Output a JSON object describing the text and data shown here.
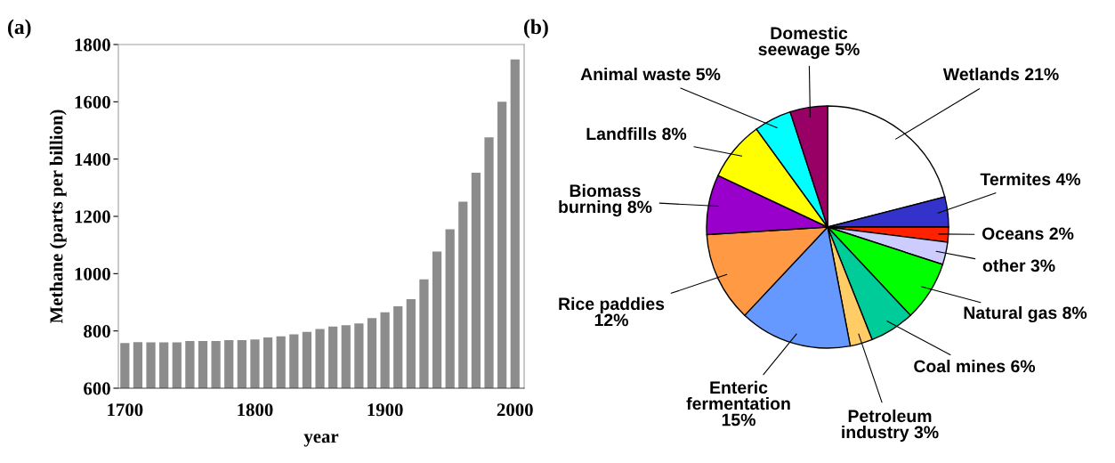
{
  "chart_data": [
    {
      "type": "bar",
      "xlabel": "year",
      "ylabel": "Methane (parts per billion)",
      "annotations": [
        "(a)"
      ],
      "x": [
        1700,
        1710,
        1720,
        1730,
        1740,
        1750,
        1760,
        1770,
        1780,
        1790,
        1800,
        1810,
        1820,
        1830,
        1840,
        1850,
        1860,
        1870,
        1880,
        1890,
        1900,
        1910,
        1920,
        1930,
        1940,
        1950,
        1960,
        1970,
        1980,
        1990,
        2000
      ],
      "values": [
        758,
        761,
        760,
        760,
        760,
        765,
        765,
        765,
        768,
        768,
        770,
        777,
        781,
        788,
        797,
        807,
        815,
        820,
        826,
        845,
        865,
        886,
        911,
        980,
        1077,
        1155,
        1251,
        1352,
        1476,
        1600,
        1748
      ],
      "color": "#8c8c8c",
      "xlim": [
        1695,
        2007
      ],
      "xticks": [
        1700,
        1800,
        1900,
        2000
      ],
      "ylim": [
        600,
        1800
      ],
      "yticks": [
        600,
        800,
        1000,
        1200,
        1400,
        1600,
        1800
      ],
      "grid": false
    },
    {
      "type": "pie",
      "annotations": [
        "(b)"
      ],
      "categories": [
        "Wetlands",
        "Termites",
        "Oceans",
        "other",
        "Natural gas",
        "Coal mines",
        "Petroleum industry",
        "Enteric fermentation",
        "Rice paddies",
        "Biomass burning",
        "Landfills",
        "Animal waste",
        "Domestic seewage"
      ],
      "values": [
        21,
        4,
        2,
        3,
        8,
        6,
        3,
        15,
        12,
        8,
        8,
        5,
        5
      ],
      "value_labels": [
        "21%",
        "4%",
        "2%",
        "3%",
        "8%",
        "6%",
        "3%",
        "15%",
        "12%",
        "8%",
        "8%",
        "5%",
        "5%"
      ],
      "colors": [
        "#ffffff",
        "#3333cc",
        "#ff2200",
        "#ccccff",
        "#00ff00",
        "#00cc99",
        "#ffcc66",
        "#6699ff",
        "#ff9944",
        "#9900cc",
        "#ffff00",
        "#00ffff",
        "#990066"
      ]
    }
  ]
}
